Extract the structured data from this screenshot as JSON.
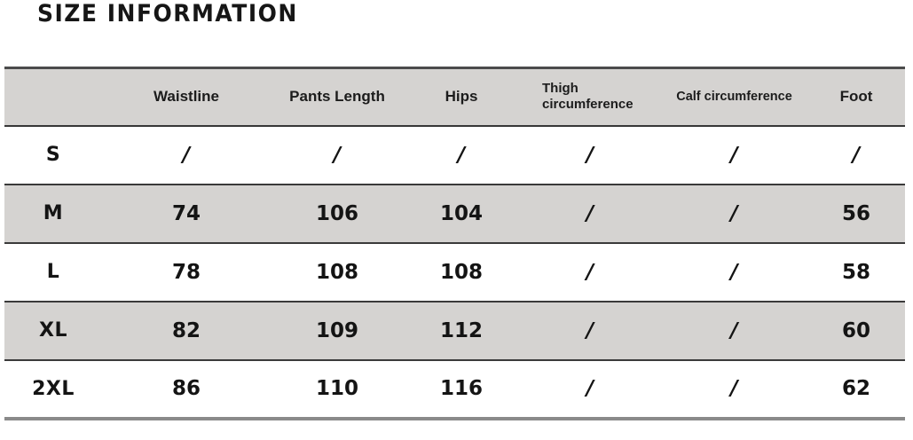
{
  "title": "SIZE INFORMATION",
  "chart_data": {
    "type": "table",
    "title": "SIZE INFORMATION",
    "columns": [
      "",
      "Waistline",
      "Pants Length",
      "Hips",
      "Thigh circumference",
      "Calf circumference",
      "Foot"
    ],
    "rows": [
      {
        "size": "S",
        "values": [
          "/",
          "/",
          "/",
          "/",
          "/",
          "/"
        ]
      },
      {
        "size": "M",
        "values": [
          "74",
          "106",
          "104",
          "/",
          "/",
          "56"
        ]
      },
      {
        "size": "L",
        "values": [
          "78",
          "108",
          "108",
          "/",
          "/",
          "58"
        ]
      },
      {
        "size": "XL",
        "values": [
          "82",
          "109",
          "112",
          "/",
          "/",
          "60"
        ]
      },
      {
        "size": "2XL",
        "values": [
          "86",
          "110",
          "116",
          "/",
          "/",
          "62"
        ]
      }
    ],
    "layout": {
      "striped_rows": "header, M and XL rows shaded gray; S, L, 2XL white",
      "stripe_color": "#d5d3d1",
      "border_top_color": "#4b4b4b",
      "row_separator_color": "#3a3a3a",
      "border_bottom_color": "#8a8a8a",
      "text_color": "#141414"
    }
  }
}
